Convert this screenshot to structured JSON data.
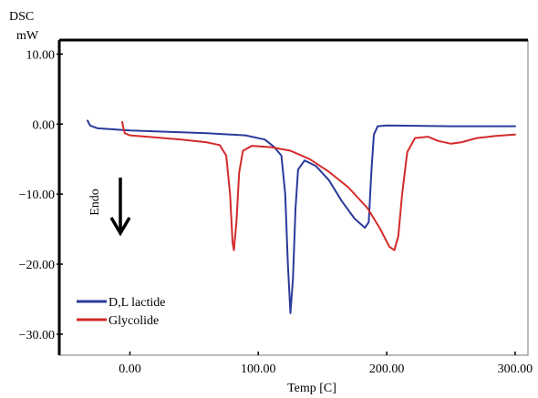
{
  "chart_data": {
    "type": "line",
    "ylabel_line1": "DSC",
    "ylabel_line2": "mW",
    "xlabel": "Temp [C]",
    "xlim": [
      -55,
      310
    ],
    "ylim": [
      -33,
      12
    ],
    "x_ticks": [
      "0.00",
      "100.00",
      "200.00",
      "300.00"
    ],
    "x_tick_values": [
      0,
      100,
      200,
      300
    ],
    "y_ticks": [
      "10.00",
      "0.00",
      "-10.00",
      "-20.00",
      "-30.00"
    ],
    "y_tick_values": [
      10,
      0,
      -10,
      -20,
      -30
    ],
    "grid": false,
    "legend_position": "bottom-left",
    "annotation": "Endo",
    "series": [
      {
        "name": "D,L lactide",
        "color": "#2b3a9a",
        "points": [
          [
            -33,
            0.5
          ],
          [
            -31,
            -0.2
          ],
          [
            -25,
            -0.6
          ],
          [
            0,
            -0.9
          ],
          [
            30,
            -1.1
          ],
          [
            60,
            -1.3
          ],
          [
            90,
            -1.6
          ],
          [
            105,
            -2.2
          ],
          [
            112,
            -3.2
          ],
          [
            118,
            -4.5
          ],
          [
            121,
            -10
          ],
          [
            123,
            -20
          ],
          [
            125,
            -27
          ],
          [
            127,
            -22
          ],
          [
            129,
            -12
          ],
          [
            131,
            -6.5
          ],
          [
            136,
            -5.2
          ],
          [
            145,
            -6
          ],
          [
            155,
            -8
          ],
          [
            165,
            -11
          ],
          [
            175,
            -13.5
          ],
          [
            183,
            -14.8
          ],
          [
            186,
            -14
          ],
          [
            188,
            -7
          ],
          [
            190,
            -1.5
          ],
          [
            193,
            -0.3
          ],
          [
            200,
            -0.2
          ],
          [
            250,
            -0.3
          ],
          [
            300,
            -0.3
          ]
        ]
      },
      {
        "name": "Glycolide",
        "color": "#d42a2a",
        "points": [
          [
            -6,
            0.3
          ],
          [
            -5,
            -0.6
          ],
          [
            -4,
            -1.3
          ],
          [
            0,
            -1.6
          ],
          [
            20,
            -1.9
          ],
          [
            40,
            -2.2
          ],
          [
            60,
            -2.6
          ],
          [
            70,
            -3
          ],
          [
            75,
            -4.5
          ],
          [
            78,
            -10
          ],
          [
            80,
            -17
          ],
          [
            81,
            -18
          ],
          [
            83,
            -14
          ],
          [
            85,
            -7
          ],
          [
            88,
            -3.8
          ],
          [
            95,
            -3.1
          ],
          [
            110,
            -3.3
          ],
          [
            125,
            -3.8
          ],
          [
            140,
            -5
          ],
          [
            155,
            -6.8
          ],
          [
            170,
            -9
          ],
          [
            185,
            -12
          ],
          [
            195,
            -15
          ],
          [
            202,
            -17.5
          ],
          [
            206,
            -18
          ],
          [
            209,
            -16
          ],
          [
            212,
            -10
          ],
          [
            216,
            -4
          ],
          [
            222,
            -2
          ],
          [
            232,
            -1.8
          ],
          [
            240,
            -2.4
          ],
          [
            250,
            -2.8
          ],
          [
            258,
            -2.6
          ],
          [
            270,
            -2
          ],
          [
            285,
            -1.7
          ],
          [
            300,
            -1.5
          ]
        ]
      }
    ]
  }
}
